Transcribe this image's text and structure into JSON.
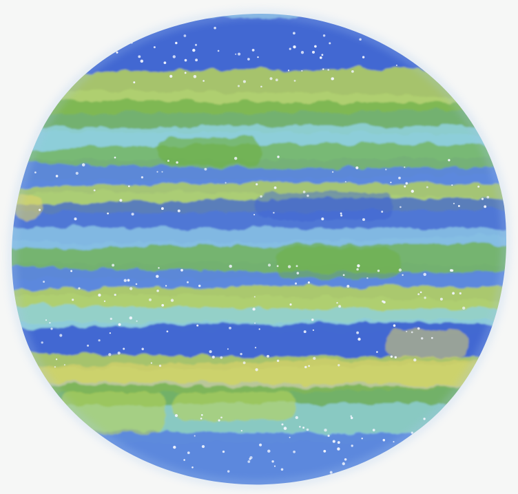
{
  "artwork": {
    "subject": "planet",
    "style": "watercolor",
    "colors": {
      "paper": "#f6f7f6",
      "deep_blue": "#3f63d1",
      "mid_blue": "#5b86dc",
      "light_blue": "#86bfe3",
      "aqua": "#8fd0d8",
      "green": "#6fb04a",
      "lime": "#b7d35a",
      "yellow": "#e0d36a",
      "star": "#f3f6ff"
    }
  }
}
